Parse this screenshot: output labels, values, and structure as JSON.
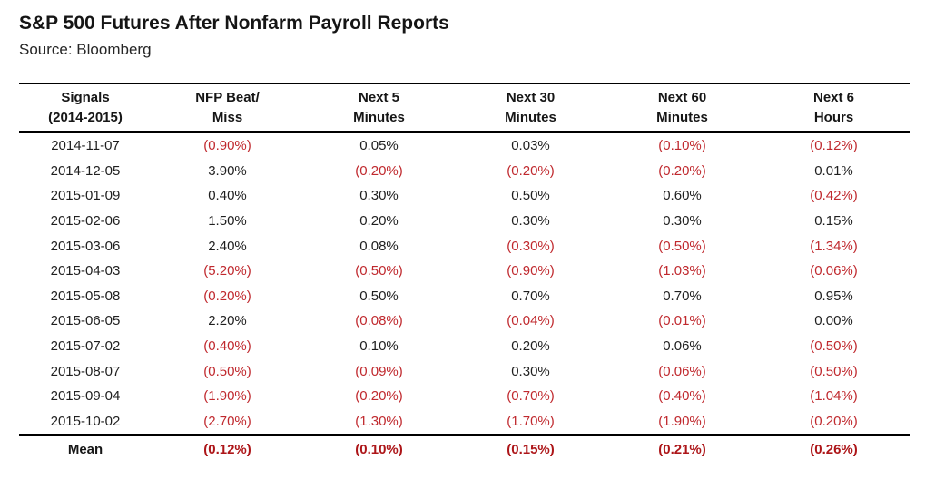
{
  "header": {
    "title": "S&P 500 Futures After Nonfarm Payroll Reports",
    "source": "Source: Bloomberg"
  },
  "colors": {
    "negative": "#c0292e",
    "mean_negative": "#ad1619",
    "text": "#1d1d1b",
    "rule": "#000000"
  },
  "chart_data": {
    "type": "table",
    "title": "S&P 500 Futures After Nonfarm Payroll Reports",
    "source": "Source: Bloomberg",
    "columns": [
      {
        "line1": "Signals",
        "line2": "(2014-2015)"
      },
      {
        "line1": "NFP Beat/",
        "line2": "Miss"
      },
      {
        "line1": "Next 5",
        "line2": "Minutes"
      },
      {
        "line1": "Next 30",
        "line2": "Minutes"
      },
      {
        "line1": "Next 60",
        "line2": "Minutes"
      },
      {
        "line1": "Next 6",
        "line2": "Hours"
      }
    ],
    "rows": [
      [
        "2014-11-07",
        "(0.90%)",
        "0.05%",
        "0.03%",
        "(0.10%)",
        "(0.12%)"
      ],
      [
        "2014-12-05",
        "3.90%",
        "(0.20%)",
        "(0.20%)",
        "(0.20%)",
        "0.01%"
      ],
      [
        "2015-01-09",
        "0.40%",
        "0.30%",
        "0.50%",
        "0.60%",
        "(0.42%)"
      ],
      [
        "2015-02-06",
        "1.50%",
        "0.20%",
        "0.30%",
        "0.30%",
        "0.15%"
      ],
      [
        "2015-03-06",
        "2.40%",
        "0.08%",
        "(0.30%)",
        "(0.50%)",
        "(1.34%)"
      ],
      [
        "2015-04-03",
        "(5.20%)",
        "(0.50%)",
        "(0.90%)",
        "(1.03%)",
        "(0.06%)"
      ],
      [
        "2015-05-08",
        "(0.20%)",
        "0.50%",
        "0.70%",
        "0.70%",
        "0.95%"
      ],
      [
        "2015-06-05",
        "2.20%",
        "(0.08%)",
        "(0.04%)",
        "(0.01%)",
        "0.00%"
      ],
      [
        "2015-07-02",
        "(0.40%)",
        "0.10%",
        "0.20%",
        "0.06%",
        "(0.50%)"
      ],
      [
        "2015-08-07",
        "(0.50%)",
        "(0.09%)",
        "0.30%",
        "(0.06%)",
        "(0.50%)"
      ],
      [
        "2015-09-04",
        "(1.90%)",
        "(0.20%)",
        "(0.70%)",
        "(0.40%)",
        "(1.04%)"
      ],
      [
        "2015-10-02",
        "(2.70%)",
        "(1.30%)",
        "(1.70%)",
        "(1.90%)",
        "(0.20%)"
      ]
    ],
    "mean_row": [
      "Mean",
      "(0.12%)",
      "(0.10%)",
      "(0.15%)",
      "(0.21%)",
      "(0.26%)"
    ],
    "value_convention": "values in parentheses are negative and rendered in red"
  }
}
